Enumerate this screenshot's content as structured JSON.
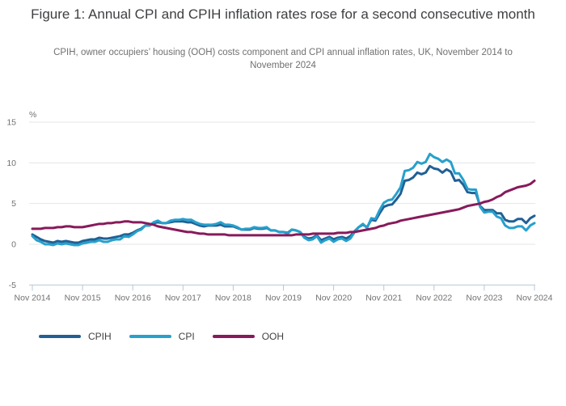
{
  "figure": {
    "title": "Figure 1: Annual CPI and CPIH inflation rates rose for a second consecutive month",
    "subtitle": "CPIH, owner occupiers’ housing (OOH) costs component and CPI annual inflation rates, UK, November 2014 to November 2024"
  },
  "colors": {
    "cpih_line": "#206095",
    "cpi_line": "#27A0CC",
    "ooh_line": "#871A5B",
    "gridline": "#e6e6e6",
    "axis_line": "#b4c8d8",
    "axis_text": "#707071",
    "title_text": "#3e3f42"
  },
  "chart_data": {
    "type": "line",
    "title": "Figure 1: Annual CPI and CPIH inflation rates rose for a second consecutive month",
    "subtitle": "CPIH, owner occupiers’ housing (OOH) costs component and CPI annual inflation rates, UK, November 2014 to November 2024",
    "unit_label": "%",
    "xlabel": "",
    "ylabel": "%",
    "ylim": [
      -5,
      15
    ],
    "y_ticks": [
      -5,
      0,
      5,
      10,
      15
    ],
    "gridline_values": [
      0,
      5,
      10,
      15
    ],
    "grid": true,
    "legend_position": "bottom-left",
    "x_frequency": "monthly",
    "x_start": "Nov 2014",
    "x_end": "Nov 2024",
    "n_points": 121,
    "x_tick_labels": [
      "Nov 2014",
      "Nov 2015",
      "Nov 2016",
      "Nov 2017",
      "Nov 2018",
      "Nov 2019",
      "Nov 2020",
      "Nov 2021",
      "Nov 2022",
      "Nov 2023",
      "Nov 2024"
    ],
    "series": [
      {
        "name": "CPIH",
        "color": "#206095",
        "values": [
          1.2,
          0.9,
          0.6,
          0.4,
          0.3,
          0.2,
          0.4,
          0.3,
          0.4,
          0.3,
          0.2,
          0.2,
          0.4,
          0.5,
          0.6,
          0.6,
          0.8,
          0.7,
          0.7,
          0.8,
          0.9,
          1.0,
          1.2,
          1.2,
          1.4,
          1.7,
          1.9,
          2.3,
          2.3,
          2.6,
          2.7,
          2.6,
          2.6,
          2.7,
          2.8,
          2.8,
          2.8,
          2.7,
          2.7,
          2.5,
          2.3,
          2.2,
          2.3,
          2.3,
          2.3,
          2.4,
          2.2,
          2.2,
          2.2,
          2.0,
          1.8,
          1.8,
          1.8,
          2.0,
          1.9,
          1.9,
          2.0,
          1.7,
          1.7,
          1.5,
          1.5,
          1.4,
          1.8,
          1.7,
          1.5,
          0.9,
          0.7,
          0.8,
          1.1,
          0.5,
          0.7,
          0.9,
          0.6,
          0.8,
          0.9,
          0.7,
          1.0,
          1.6,
          2.1,
          2.4,
          2.1,
          3.0,
          2.9,
          3.8,
          4.6,
          4.8,
          4.9,
          5.5,
          6.2,
          7.8,
          7.9,
          8.2,
          8.8,
          8.6,
          8.8,
          9.6,
          9.3,
          9.2,
          8.8,
          9.2,
          8.9,
          7.8,
          7.9,
          7.3,
          6.4,
          6.3,
          6.3,
          4.7,
          4.2,
          4.2,
          4.2,
          3.8,
          3.8,
          3.0,
          2.8,
          2.8,
          3.1,
          3.1,
          2.6,
          3.2,
          3.5
        ]
      },
      {
        "name": "CPI",
        "color": "#27A0CC",
        "values": [
          1.0,
          0.5,
          0.3,
          0.0,
          0.0,
          -0.1,
          0.1,
          0.0,
          0.1,
          0.0,
          -0.1,
          -0.1,
          0.1,
          0.2,
          0.3,
          0.3,
          0.5,
          0.3,
          0.3,
          0.5,
          0.6,
          0.6,
          1.0,
          0.9,
          1.2,
          1.6,
          1.8,
          2.3,
          2.3,
          2.7,
          2.9,
          2.6,
          2.6,
          2.9,
          3.0,
          3.0,
          3.1,
          3.0,
          3.0,
          2.7,
          2.5,
          2.4,
          2.4,
          2.4,
          2.5,
          2.7,
          2.4,
          2.4,
          2.3,
          2.1,
          1.8,
          1.9,
          1.9,
          2.1,
          2.0,
          2.0,
          2.1,
          1.7,
          1.7,
          1.5,
          1.5,
          1.3,
          1.8,
          1.7,
          1.5,
          0.8,
          0.5,
          0.6,
          1.0,
          0.2,
          0.5,
          0.7,
          0.3,
          0.6,
          0.7,
          0.4,
          0.7,
          1.5,
          2.1,
          2.5,
          2.0,
          3.2,
          3.1,
          4.2,
          5.1,
          5.4,
          5.5,
          6.2,
          7.0,
          9.0,
          9.1,
          9.4,
          10.1,
          9.9,
          10.1,
          11.1,
          10.7,
          10.5,
          10.1,
          10.4,
          10.1,
          8.7,
          8.7,
          7.9,
          6.8,
          6.7,
          6.7,
          4.6,
          3.9,
          4.0,
          4.0,
          3.4,
          3.2,
          2.3,
          2.0,
          2.0,
          2.2,
          2.2,
          1.7,
          2.3,
          2.6
        ]
      },
      {
        "name": "OOH",
        "color": "#871A5B",
        "values": [
          1.9,
          1.9,
          1.9,
          2.0,
          2.0,
          2.0,
          2.1,
          2.1,
          2.2,
          2.2,
          2.1,
          2.1,
          2.1,
          2.2,
          2.3,
          2.4,
          2.5,
          2.5,
          2.6,
          2.6,
          2.7,
          2.7,
          2.8,
          2.8,
          2.7,
          2.7,
          2.7,
          2.6,
          2.5,
          2.4,
          2.2,
          2.1,
          2.0,
          1.9,
          1.8,
          1.7,
          1.6,
          1.5,
          1.5,
          1.4,
          1.3,
          1.3,
          1.2,
          1.2,
          1.2,
          1.2,
          1.2,
          1.1,
          1.1,
          1.1,
          1.1,
          1.1,
          1.1,
          1.1,
          1.1,
          1.1,
          1.1,
          1.1,
          1.1,
          1.1,
          1.1,
          1.1,
          1.1,
          1.2,
          1.2,
          1.2,
          1.2,
          1.3,
          1.3,
          1.3,
          1.3,
          1.3,
          1.3,
          1.4,
          1.4,
          1.4,
          1.5,
          1.5,
          1.6,
          1.7,
          1.8,
          1.9,
          2.0,
          2.2,
          2.3,
          2.5,
          2.6,
          2.7,
          2.9,
          3.0,
          3.1,
          3.2,
          3.3,
          3.4,
          3.5,
          3.6,
          3.7,
          3.8,
          3.9,
          4.0,
          4.1,
          4.2,
          4.3,
          4.5,
          4.7,
          4.8,
          4.9,
          5.0,
          5.2,
          5.3,
          5.5,
          5.8,
          6.0,
          6.4,
          6.6,
          6.8,
          7.0,
          7.1,
          7.2,
          7.4,
          7.8
        ]
      }
    ]
  }
}
